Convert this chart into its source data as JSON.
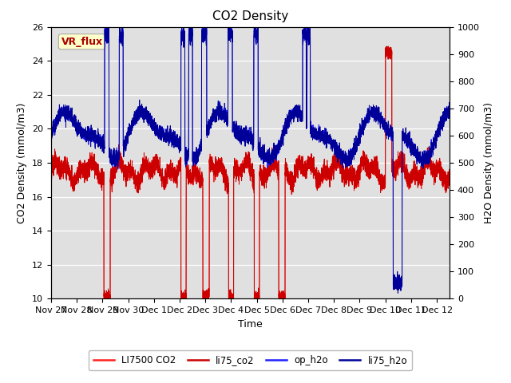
{
  "title": "CO2 Density",
  "xlabel": "Time",
  "ylabel_left": "CO2 Density (mmol/m3)",
  "ylabel_right": "H2O Density (mmol/m3)",
  "ylim_left": [
    10,
    26
  ],
  "ylim_right": [
    0,
    1000
  ],
  "yticks_left": [
    10,
    12,
    14,
    16,
    18,
    20,
    22,
    24,
    26
  ],
  "yticks_right": [
    0,
    100,
    200,
    300,
    400,
    500,
    600,
    700,
    800,
    900,
    1000
  ],
  "xtick_labels": [
    "Nov 27",
    "Nov 28",
    "Nov 29",
    "Nov 30",
    "Dec 1",
    "Dec 2",
    "Dec 3",
    "Dec 4",
    "Dec 5",
    "Dec 6",
    "Dec 7",
    "Dec 8",
    "Dec 9",
    "Dec 10",
    "Dec 11",
    "Dec 12"
  ],
  "legend_labels": [
    "LI7500 CO2",
    "li75_co2",
    "op_h2o",
    "li75_h2o"
  ],
  "co2_color1": "#ff2020",
  "co2_color2": "#cc0000",
  "h2o_color1": "#2020ff",
  "h2o_color2": "#000099",
  "legend_box_color": "#ffffcc",
  "legend_box_edge": "#aaaaaa",
  "legend_title": "VR_flux",
  "bg_color": "#e0e0e0",
  "fig_bg": "#ffffff",
  "grid_color": "#ffffff",
  "title_fontsize": 11,
  "axis_fontsize": 9,
  "tick_fontsize": 8,
  "n_points": 5000,
  "total_days": 15.5
}
